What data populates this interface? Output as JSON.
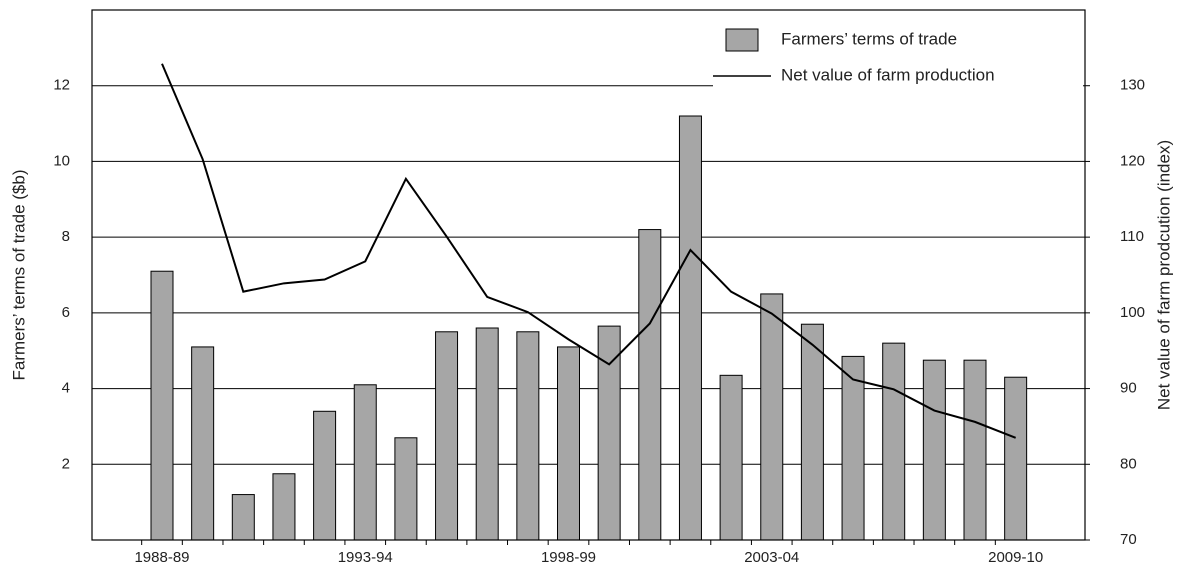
{
  "chart_data": {
    "type": "bar",
    "categories": [
      "1988-89",
      null,
      null,
      null,
      null,
      "1993-94",
      null,
      null,
      null,
      null,
      "1998-99",
      null,
      null,
      null,
      null,
      "2003-04",
      null,
      null,
      null,
      null,
      null,
      "2009-10"
    ],
    "series": [
      {
        "name": "Farmers’ terms of trade",
        "type": "bar",
        "color": "#a6a6a6",
        "values": [
          7.1,
          5.1,
          1.2,
          1.75,
          3.4,
          4.1,
          2.7,
          5.5,
          5.6,
          5.5,
          5.1,
          5.65,
          8.2,
          11.2,
          4.35,
          6.5,
          5.7,
          4.85,
          5.2,
          4.75,
          4.75,
          4.3
        ]
      },
      {
        "name": "Net value of farm production",
        "type": "line",
        "color": "#000000",
        "axis": "y2",
        "values": [
          132.9,
          120.3,
          102.8,
          103.9,
          104.4,
          106.8,
          117.7,
          110.1,
          102.1,
          100.1,
          96.5,
          93.2,
          98.6,
          108.3,
          102.8,
          99.9,
          95.8,
          91.2,
          89.9,
          87.1,
          85.6,
          83.5
        ]
      }
    ],
    "ylabel": "Farmers’ terms of trade ($b)",
    "y2label": "Net value of farm prodcution (index)",
    "ylim": [
      0,
      14
    ],
    "yticks": [
      2,
      4,
      6,
      8,
      10,
      12
    ],
    "y2lim": [
      70,
      140
    ],
    "y2ticks": [
      70,
      80,
      90,
      100,
      110,
      120,
      130
    ],
    "grid": true,
    "legend": "upper right"
  }
}
